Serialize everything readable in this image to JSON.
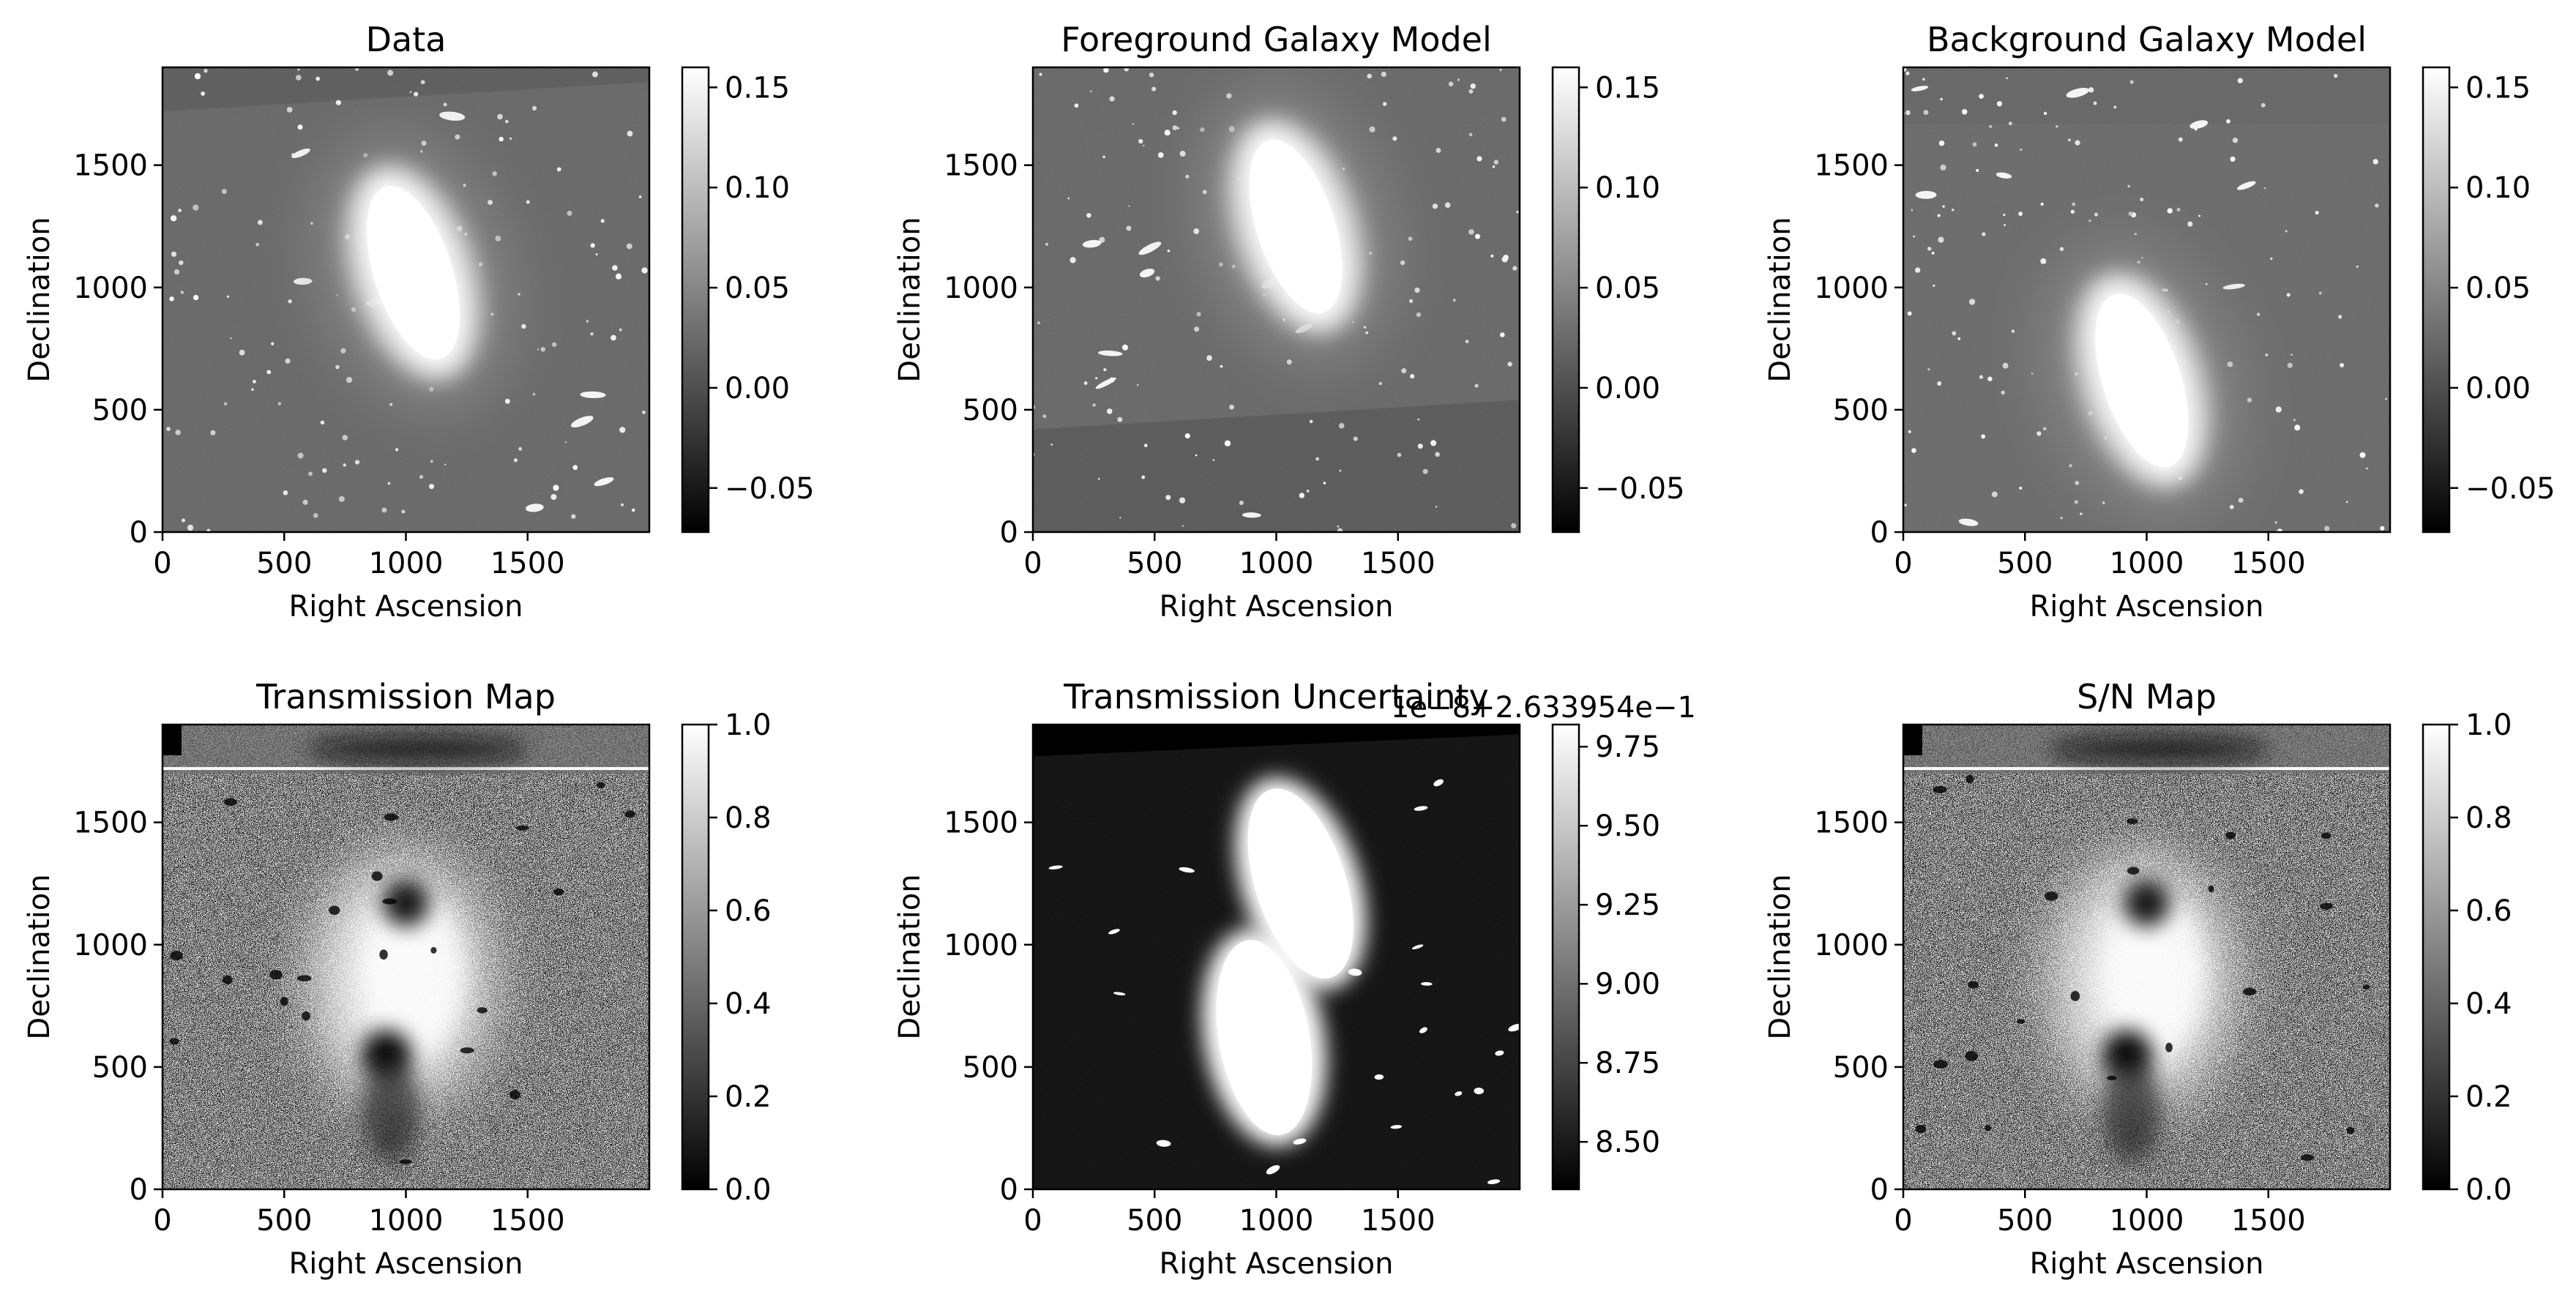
{
  "figure": {
    "background": "#ffffff",
    "panels": [
      {
        "title": "Data",
        "xlabel": "Right Ascension",
        "ylabel": "Declination",
        "xticks": [
          "0",
          "500",
          "1000",
          "1500"
        ],
        "yticks": [
          "0",
          "500",
          "1000",
          "1500"
        ],
        "colorbar": {
          "ticks": [
            "0.15",
            "0.10",
            "0.05",
            "0.00",
            "−0.05"
          ],
          "range": [
            -0.072,
            0.16
          ],
          "tick_values": [
            0.15,
            0.1,
            0.05,
            0.0,
            -0.05
          ],
          "offset_text": ""
        },
        "image": {
          "background_level": 0.39,
          "band_level": 0.34,
          "band": {
            "edge": "top",
            "from_y": 1720,
            "to_y": 1900,
            "slope": "up-right"
          },
          "galaxy": {
            "center": [
              1030,
              1060
            ],
            "axes": [
              230,
              430
            ],
            "angle_deg": -18,
            "core_level": 1.0
          },
          "noise": 0.06
        }
      },
      {
        "title": "Foreground Galaxy Model",
        "xlabel": "Right Ascension",
        "ylabel": "Declination",
        "xticks": [
          "0",
          "500",
          "1000",
          "1500"
        ],
        "yticks": [
          "0",
          "500",
          "1000",
          "1500"
        ],
        "colorbar": {
          "ticks": [
            "0.15",
            "0.10",
            "0.05",
            "0.00",
            "−0.05"
          ],
          "range": [
            -0.072,
            0.16
          ],
          "tick_values": [
            0.15,
            0.1,
            0.05,
            0.0,
            -0.05
          ],
          "offset_text": ""
        },
        "image": {
          "background_level": 0.39,
          "band_level": 0.33,
          "band": {
            "edge": "bottom",
            "from_y": 0,
            "to_y": 480,
            "slope": "up-right"
          },
          "galaxy": {
            "center": [
              1080,
              1250
            ],
            "axes": [
              230,
              430
            ],
            "angle_deg": -18,
            "core_level": 1.0
          },
          "noise": 0.05
        }
      },
      {
        "title": "Background Galaxy Model",
        "xlabel": "Right Ascension",
        "ylabel": "Declination",
        "xticks": [
          "0",
          "500",
          "1000",
          "1500"
        ],
        "yticks": [
          "0",
          "500",
          "1000",
          "1500"
        ],
        "colorbar": {
          "ticks": [
            "0.15",
            "0.10",
            "0.05",
            "0.00",
            "−0.05"
          ],
          "range": [
            -0.072,
            0.16
          ],
          "tick_values": [
            0.15,
            0.1,
            0.05,
            0.0,
            -0.05
          ],
          "offset_text": ""
        },
        "image": {
          "background_level": 0.4,
          "band_level": 0.38,
          "band": {
            "edge": "top",
            "from_y": 1670,
            "to_y": 1900,
            "slope": "flat"
          },
          "galaxy": {
            "center": [
              980,
              620
            ],
            "axes": [
              230,
              430
            ],
            "angle_deg": -18,
            "core_level": 1.0
          },
          "noise": 0.05
        }
      },
      {
        "title": "Transmission Map",
        "xlabel": "Right Ascension",
        "ylabel": "Declination",
        "xticks": [
          "0",
          "500",
          "1000",
          "1500"
        ],
        "yticks": [
          "0",
          "500",
          "1000",
          "1500"
        ],
        "colorbar": {
          "ticks": [
            "1.0",
            "0.8",
            "0.6",
            "0.4",
            "0.2",
            "0.0"
          ],
          "range": [
            0,
            1
          ],
          "tick_values": [
            1.0,
            0.8,
            0.6,
            0.4,
            0.2,
            0.0
          ],
          "offset_text": ""
        },
        "image": {
          "background_level": 0.5,
          "noise": 0.45,
          "style": "noise-map"
        }
      },
      {
        "title": "Transmission Uncertainty",
        "xlabel": "Right Ascension",
        "ylabel": "Declination",
        "xticks": [
          "0",
          "500",
          "1000",
          "1500"
        ],
        "yticks": [
          "0",
          "500",
          "1000",
          "1500"
        ],
        "colorbar": {
          "ticks": [
            "9.75",
            "9.50",
            "9.25",
            "9.00",
            "8.75",
            "8.50"
          ],
          "range": [
            8.35,
            9.82
          ],
          "tick_values": [
            9.75,
            9.5,
            9.25,
            9.0,
            8.75,
            8.5
          ],
          "offset_text": "1e−8+2.633954e−1"
        },
        "image": {
          "background_level": 0.05,
          "noise": 0.05,
          "style": "bright-galaxies"
        }
      },
      {
        "title": "S/N Map",
        "xlabel": "Right Ascension",
        "ylabel": "Declination",
        "xticks": [
          "0",
          "500",
          "1000",
          "1500"
        ],
        "yticks": [
          "0",
          "500",
          "1000",
          "1500"
        ],
        "colorbar": {
          "ticks": [
            "1.0",
            "0.8",
            "0.6",
            "0.4",
            "0.2",
            "0.0"
          ],
          "range": [
            0,
            1
          ],
          "tick_values": [
            1.0,
            0.8,
            0.6,
            0.4,
            0.2,
            0.0
          ],
          "offset_text": ""
        },
        "image": {
          "background_level": 0.5,
          "noise": 0.45,
          "style": "noise-map"
        }
      }
    ]
  },
  "chart_data": [
    {
      "type": "heatmap",
      "title": "Data",
      "xlabel": "Right Ascension",
      "ylabel": "Declination",
      "xlim": [
        0,
        2000
      ],
      "ylim": [
        0,
        1900
      ],
      "x_ticks": [
        0,
        500,
        1000,
        1500
      ],
      "y_ticks": [
        0,
        500,
        1000,
        1500
      ],
      "colormap": "gray",
      "clim": [
        -0.072,
        0.16
      ],
      "colorbar_ticks": [
        0.15,
        0.1,
        0.05,
        0.0,
        -0.05
      ]
    },
    {
      "type": "heatmap",
      "title": "Foreground Galaxy Model",
      "xlabel": "Right Ascension",
      "ylabel": "Declination",
      "xlim": [
        0,
        2000
      ],
      "ylim": [
        0,
        1900
      ],
      "x_ticks": [
        0,
        500,
        1000,
        1500
      ],
      "y_ticks": [
        0,
        500,
        1000,
        1500
      ],
      "colormap": "gray",
      "clim": [
        -0.072,
        0.16
      ],
      "colorbar_ticks": [
        0.15,
        0.1,
        0.05,
        0.0,
        -0.05
      ]
    },
    {
      "type": "heatmap",
      "title": "Background Galaxy Model",
      "xlabel": "Right Ascension",
      "ylabel": "Declination",
      "xlim": [
        0,
        2000
      ],
      "ylim": [
        0,
        1900
      ],
      "x_ticks": [
        0,
        500,
        1000,
        1500
      ],
      "y_ticks": [
        0,
        500,
        1000,
        1500
      ],
      "colormap": "gray",
      "clim": [
        -0.072,
        0.16
      ],
      "colorbar_ticks": [
        0.15,
        0.1,
        0.05,
        0.0,
        -0.05
      ]
    },
    {
      "type": "heatmap",
      "title": "Transmission Map",
      "xlabel": "Right Ascension",
      "ylabel": "Declination",
      "xlim": [
        0,
        2000
      ],
      "ylim": [
        0,
        1900
      ],
      "x_ticks": [
        0,
        500,
        1000,
        1500
      ],
      "y_ticks": [
        0,
        500,
        1000,
        1500
      ],
      "colormap": "gray",
      "clim": [
        0,
        1
      ],
      "colorbar_ticks": [
        1.0,
        0.8,
        0.6,
        0.4,
        0.2,
        0.0
      ]
    },
    {
      "type": "heatmap",
      "title": "Transmission Uncertainty",
      "xlabel": "Right Ascension",
      "ylabel": "Declination",
      "xlim": [
        0,
        2000
      ],
      "ylim": [
        0,
        1900
      ],
      "x_ticks": [
        0,
        500,
        1000,
        1500
      ],
      "y_ticks": [
        0,
        500,
        1000,
        1500
      ],
      "colormap": "gray",
      "clim": [
        8.35,
        9.82
      ],
      "colorbar_ticks": [
        9.75,
        9.5,
        9.25,
        9.0,
        8.75,
        8.5
      ],
      "colorbar_offset": "1e−8+2.633954e−1"
    },
    {
      "type": "heatmap",
      "title": "S/N Map",
      "xlabel": "Right Ascension",
      "ylabel": "Declination",
      "xlim": [
        0,
        2000
      ],
      "ylim": [
        0,
        1900
      ],
      "x_ticks": [
        0,
        500,
        1000,
        1500
      ],
      "y_ticks": [
        0,
        500,
        1000,
        1500
      ],
      "colormap": "gray",
      "clim": [
        0,
        1
      ],
      "colorbar_ticks": [
        1.0,
        0.8,
        0.6,
        0.4,
        0.2,
        0.0
      ]
    }
  ]
}
